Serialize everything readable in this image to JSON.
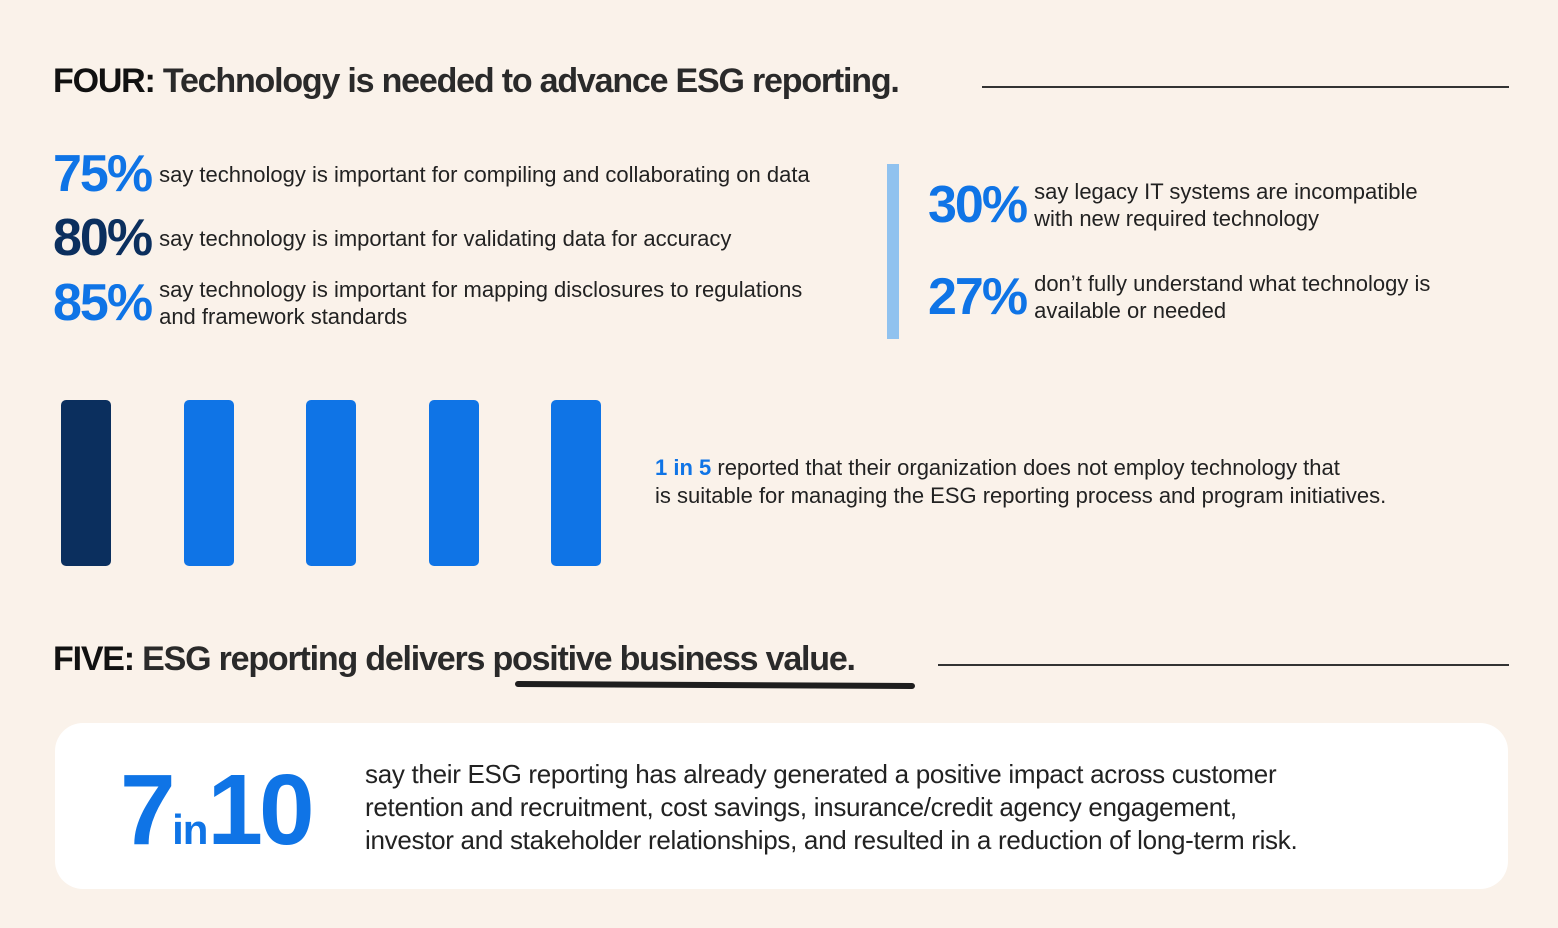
{
  "section4": {
    "label": "FOUR:",
    "title": "Technology is needed to advance ESG reporting.",
    "stats_left": [
      {
        "value": "75%",
        "text": "say technology is important for compiling and collaborating on data"
      },
      {
        "value": "80%",
        "text": "say technology is important for validating data for accuracy"
      },
      {
        "value": "85%",
        "text": "say technology is important for mapping disclosures to regulations",
        "text2": "and framework standards"
      }
    ],
    "stats_right": [
      {
        "value": "30%",
        "text": "say legacy IT systems are incompatible",
        "text2": "with new required technology"
      },
      {
        "value": "27%",
        "text": "don’t fully understand what technology is",
        "text2": "available or needed"
      }
    ],
    "ratio": {
      "highlight": "1 in 5",
      "text": " reported that their organization does not employ technology that",
      "text2": "is suitable for managing the ESG reporting process and program initiatives.",
      "filled": 1,
      "total": 5
    },
    "colors": {
      "blue": "#0f74e6",
      "navy": "#0b2f5e",
      "divider": "#90c2ef"
    }
  },
  "section5": {
    "label": "FIVE:",
    "title_pre": "ESG reporting delivers ",
    "title_underlined": "positive business value.",
    "stat": {
      "num1": "7",
      "mid": "in",
      "num2": "10",
      "lines": [
        "say their ESG reporting has already generated a positive impact across customer",
        "retention and recruitment, cost savings, insurance/credit agency engagement,",
        "investor and stakeholder relationships, and resulted in a reduction of long-term risk."
      ]
    }
  }
}
